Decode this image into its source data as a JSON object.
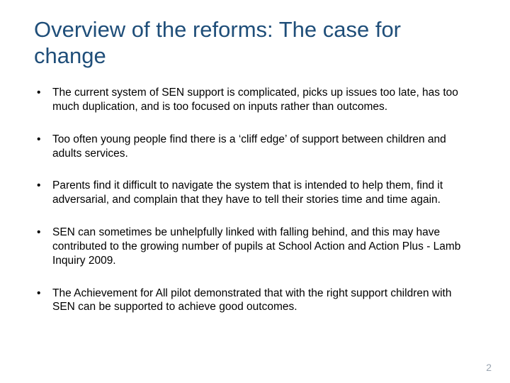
{
  "slide": {
    "title": "Overview of the reforms: The case for change",
    "title_color": "#1f4e79",
    "title_fontsize": 31,
    "body_fontsize": 15.5,
    "body_color": "#000000",
    "background_color": "#ffffff",
    "bullets": [
      "The current system of SEN support is complicated, picks up issues too late, has too much duplication, and is too focused on inputs rather than outcomes.",
      "Too often young people find there is a ‘cliff edge’ of support between children and adults services.",
      "Parents find it difficult to navigate the system that is intended to help them, find it adversarial, and complain that they have to tell their stories time and time again.",
      "SEN can sometimes be unhelpfully linked with falling behind, and this may have contributed to the growing number of pupils at School Action and Action Plus - Lamb Inquiry 2009.",
      "The Achievement for All pilot demonstrated that with the right support children with SEN can be supported to achieve good outcomes."
    ],
    "page_number": "2",
    "page_number_color": "#9aa5b1"
  }
}
